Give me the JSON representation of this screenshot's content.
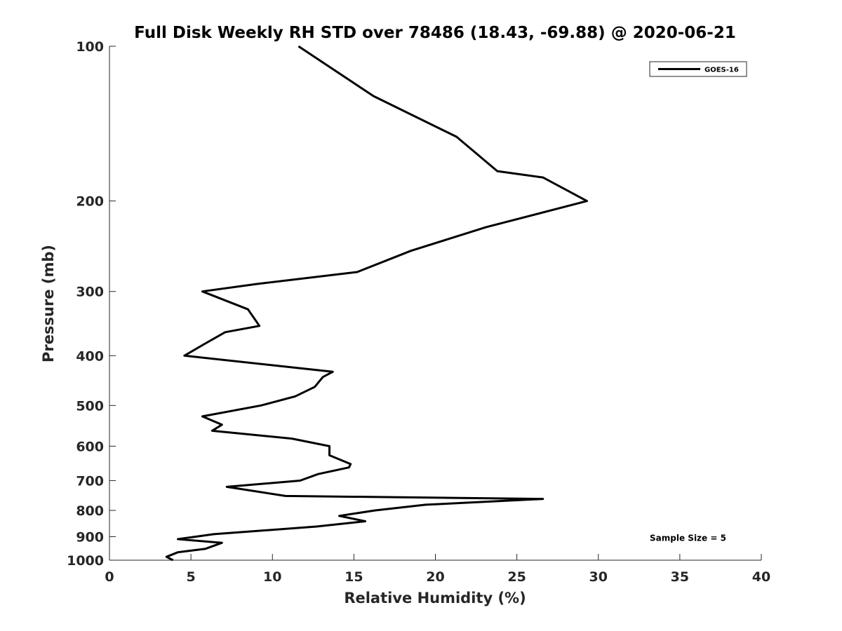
{
  "chart_data": {
    "type": "line",
    "title": "Full Disk Weekly RH STD over 78486 (18.43, -69.88) @ 2020-06-21",
    "xlabel": "Relative Humidity (%)",
    "ylabel": "Pressure (mb)",
    "xlim": [
      0,
      40
    ],
    "ylim": [
      100,
      1000
    ],
    "yscale": "log",
    "y_reversed": true,
    "grid": false,
    "legend_position": "top-right",
    "x_ticks": [
      0,
      5,
      10,
      15,
      20,
      25,
      30,
      35,
      40
    ],
    "y_ticks": [
      100,
      200,
      300,
      400,
      500,
      600,
      700,
      800,
      900,
      1000
    ],
    "series": [
      {
        "name": "GOES-16",
        "color": "#000000",
        "points": [
          [
            11.6,
            100
          ],
          [
            16.2,
            125
          ],
          [
            21.3,
            150
          ],
          [
            23.8,
            175
          ],
          [
            26.6,
            180
          ],
          [
            29.3,
            200
          ],
          [
            23.1,
            225
          ],
          [
            18.5,
            250
          ],
          [
            15.2,
            275
          ],
          [
            9.1,
            290
          ],
          [
            5.7,
            300
          ],
          [
            8.5,
            325
          ],
          [
            9.2,
            350
          ],
          [
            7.1,
            360
          ],
          [
            5.8,
            380
          ],
          [
            4.6,
            400
          ],
          [
            13.7,
            430
          ],
          [
            13.1,
            440
          ],
          [
            12.6,
            460
          ],
          [
            11.4,
            480
          ],
          [
            9.3,
            500
          ],
          [
            5.7,
            525
          ],
          [
            6.9,
            545
          ],
          [
            6.3,
            560
          ],
          [
            11.2,
            580
          ],
          [
            13.5,
            600
          ],
          [
            13.5,
            625
          ],
          [
            14.8,
            650
          ],
          [
            14.7,
            660
          ],
          [
            12.8,
            680
          ],
          [
            11.7,
            700
          ],
          [
            7.2,
            720
          ],
          [
            10.8,
            750
          ],
          [
            26.6,
            760
          ],
          [
            19.4,
            780
          ],
          [
            16.3,
            800
          ],
          [
            14.1,
            820
          ],
          [
            15.7,
            840
          ],
          [
            12.7,
            860
          ],
          [
            6.4,
            890
          ],
          [
            4.2,
            910
          ],
          [
            6.9,
            925
          ],
          [
            5.9,
            950
          ],
          [
            4.2,
            965
          ],
          [
            3.5,
            985
          ],
          [
            3.9,
            1000
          ]
        ]
      }
    ],
    "annotations": [
      {
        "text": "Sample Size = 5",
        "x": 35.5,
        "y": 900
      }
    ]
  }
}
